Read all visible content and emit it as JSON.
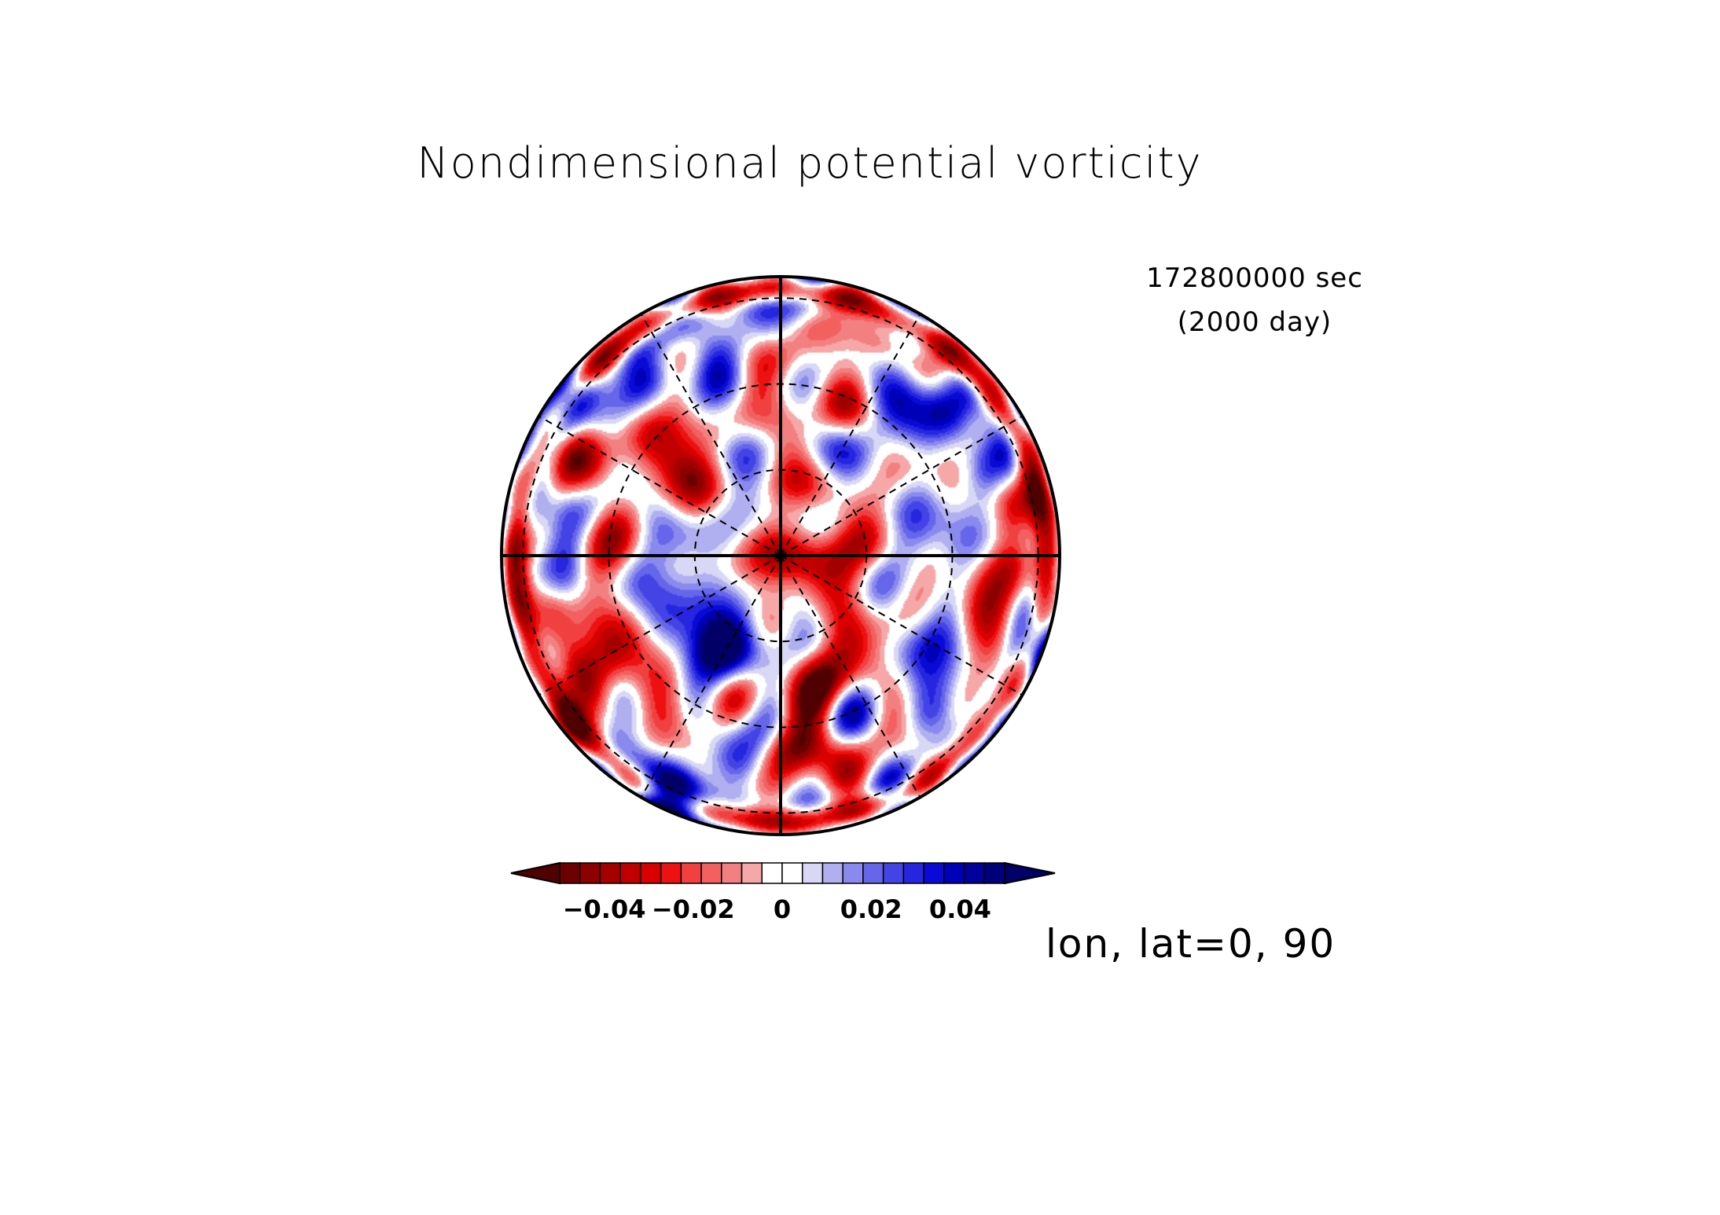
{
  "chart_data": {
    "type": "heatmap",
    "projection": "polar-stereographic",
    "title": "Nondimensional potential vorticity",
    "time_label": "172800000 sec",
    "time_label_days": "(2000 day)",
    "projection_label": "lon, lat=0, 90",
    "center": {
      "lon": 0,
      "lat": 90
    },
    "colorbar": {
      "orientation": "horizontal",
      "min": -0.05,
      "max": 0.05,
      "step": 0.005,
      "extend": "both",
      "ticks": [
        -0.04,
        -0.02,
        0,
        0.02,
        0.04
      ],
      "tick_labels": [
        "−0.04",
        "−0.02",
        "0",
        "0.02",
        "0.04"
      ],
      "colors": [
        "#6a0000",
        "#8c0000",
        "#a50000",
        "#c00000",
        "#da0000",
        "#ee1111",
        "#f04040",
        "#f26060",
        "#f38080",
        "#f6a8a8",
        "#ffffff",
        "#ffffff",
        "#d8d8f6",
        "#b0b0f0",
        "#8a8aee",
        "#6666ea",
        "#4444e6",
        "#2626e0",
        "#0a0ad6",
        "#0000b8",
        "#00009a",
        "#00007a"
      ],
      "under_color": "#500000",
      "over_color": "#000066"
    },
    "grid": {
      "meridians_solid_deg": [
        0,
        90,
        180,
        270
      ],
      "meridians_dashed_deg": [
        30,
        60,
        120,
        150,
        210,
        240,
        300,
        330
      ],
      "latitude_circles_dashed": 3,
      "visible": true
    },
    "field": {
      "description_seed": 2000,
      "value_range": [
        -0.05,
        0.05
      ]
    }
  }
}
